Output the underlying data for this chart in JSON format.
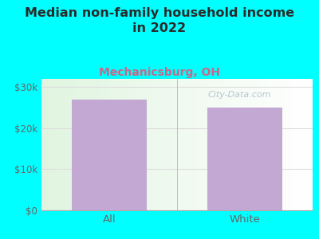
{
  "categories": [
    "All",
    "White"
  ],
  "values": [
    27000,
    25000
  ],
  "bar_color": "#c4a8d4",
  "title": "Median non-family household income\nin 2022",
  "subtitle": "Mechanicsburg, OH",
  "title_color": "#2a2a2a",
  "subtitle_color": "#cc6688",
  "background_color": "#00ffff",
  "yticks": [
    0,
    10000,
    20000,
    30000
  ],
  "ytick_labels": [
    "$0",
    "$10k",
    "$20k",
    "$30k"
  ],
  "ylim": [
    0,
    32000
  ],
  "watermark": "City-Data.com",
  "watermark_color": "#aabbcc",
  "grid_color": "#dddddd",
  "tick_label_color": "#666666",
  "bar_width": 0.55,
  "title_fontsize": 11.5,
  "subtitle_fontsize": 10
}
